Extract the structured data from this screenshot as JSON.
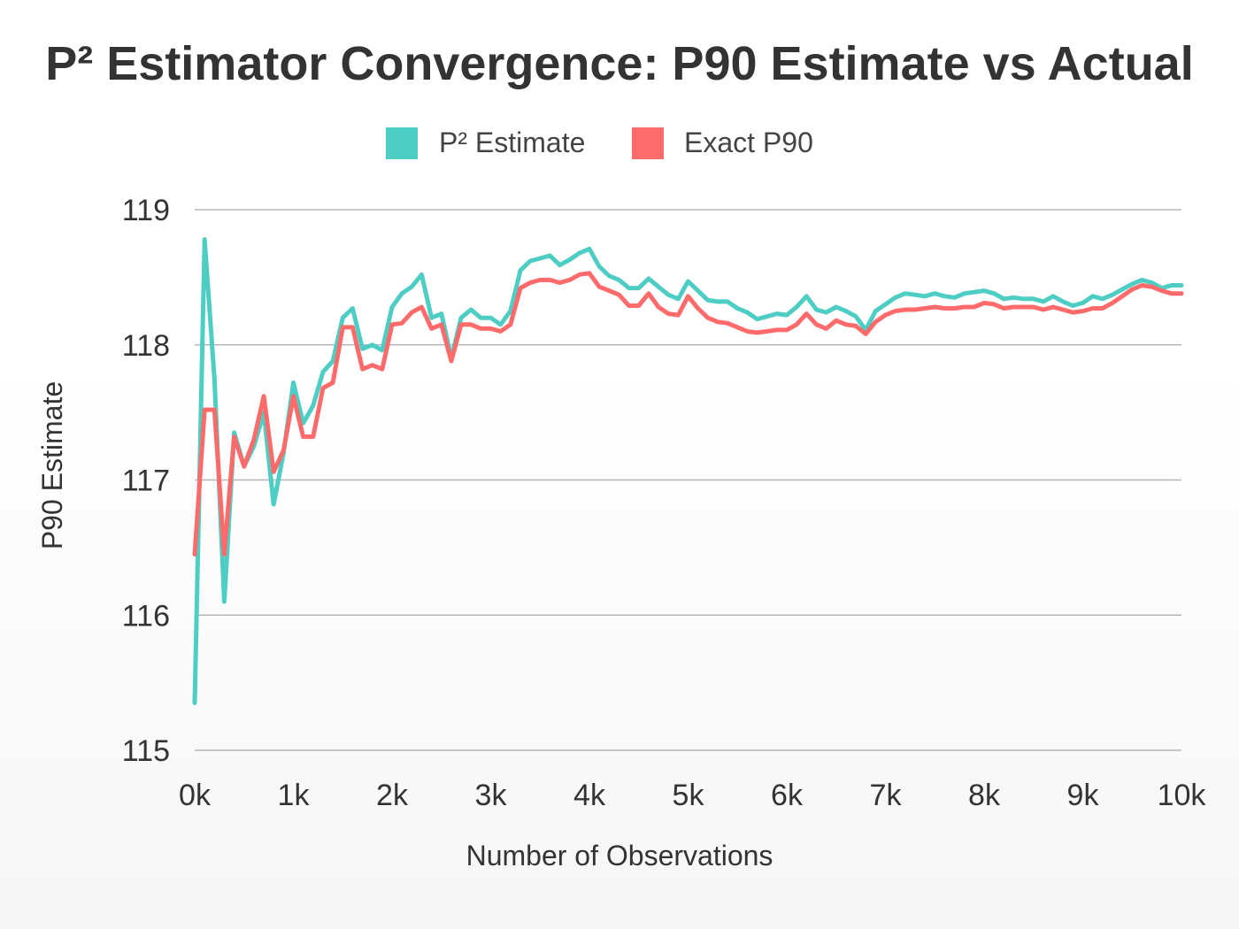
{
  "chart_data": {
    "type": "line",
    "title": "P² Estimator Convergence: P90 Estimate vs Actual",
    "xlabel": "Number of Observations",
    "ylabel": "P90 Estimate",
    "xlim": [
      0,
      10000
    ],
    "ylim": [
      115,
      119
    ],
    "x_ticks": [
      0,
      1000,
      2000,
      3000,
      4000,
      5000,
      6000,
      7000,
      8000,
      9000,
      10000
    ],
    "x_tick_labels": [
      "0k",
      "1k",
      "2k",
      "3k",
      "4k",
      "5k",
      "6k",
      "7k",
      "8k",
      "9k",
      "10k"
    ],
    "y_ticks": [
      115,
      116,
      117,
      118,
      119
    ],
    "y_tick_labels": [
      "115",
      "116",
      "117",
      "118",
      "119"
    ],
    "grid": true,
    "legend_position": "top-center",
    "x": [
      0,
      100,
      200,
      300,
      400,
      500,
      600,
      700,
      800,
      900,
      1000,
      1100,
      1200,
      1300,
      1400,
      1500,
      1600,
      1700,
      1800,
      1900,
      2000,
      2100,
      2200,
      2300,
      2400,
      2500,
      2600,
      2700,
      2800,
      2900,
      3000,
      3100,
      3200,
      3300,
      3400,
      3500,
      3600,
      3700,
      3800,
      3900,
      4000,
      4100,
      4200,
      4300,
      4400,
      4500,
      4600,
      4700,
      4800,
      4900,
      5000,
      5100,
      5200,
      5300,
      5400,
      5500,
      5600,
      5700,
      5800,
      5900,
      6000,
      6100,
      6200,
      6300,
      6400,
      6500,
      6600,
      6700,
      6800,
      6900,
      7000,
      7100,
      7200,
      7300,
      7400,
      7500,
      7600,
      7700,
      7800,
      7900,
      8000,
      8100,
      8200,
      8300,
      8400,
      8500,
      8600,
      8700,
      8800,
      8900,
      9000,
      9100,
      9200,
      9300,
      9400,
      9500,
      9600,
      9700,
      9800,
      9900,
      10000
    ],
    "series": [
      {
        "name": "P² Estimate",
        "color": "#4ecdc4",
        "values": [
          115.35,
          118.78,
          117.75,
          116.1,
          117.35,
          117.1,
          117.25,
          117.5,
          116.82,
          117.2,
          117.72,
          117.42,
          117.55,
          117.8,
          117.88,
          118.2,
          118.27,
          117.97,
          118.0,
          117.96,
          118.28,
          118.38,
          118.43,
          118.52,
          118.2,
          118.23,
          117.9,
          118.2,
          118.26,
          118.2,
          118.2,
          118.15,
          118.25,
          118.55,
          118.62,
          118.64,
          118.66,
          118.59,
          118.63,
          118.68,
          118.71,
          118.58,
          118.51,
          118.48,
          118.42,
          118.42,
          118.49,
          118.43,
          118.37,
          118.34,
          118.47,
          118.4,
          118.33,
          118.32,
          118.32,
          118.27,
          118.24,
          118.19,
          118.21,
          118.23,
          118.22,
          118.28,
          118.36,
          118.26,
          118.24,
          118.28,
          118.25,
          118.21,
          118.11,
          118.25,
          118.3,
          118.35,
          118.38,
          118.37,
          118.36,
          118.38,
          118.36,
          118.35,
          118.38,
          118.39,
          118.4,
          118.38,
          118.34,
          118.35,
          118.34,
          118.34,
          118.32,
          118.36,
          118.32,
          118.29,
          118.31,
          118.36,
          118.34,
          118.37,
          118.41,
          118.45,
          118.48,
          118.46,
          118.42,
          118.44,
          118.44
        ]
      },
      {
        "name": "Exact P90",
        "color": "#ff6b6b",
        "values": [
          116.45,
          117.52,
          117.52,
          116.45,
          117.32,
          117.1,
          117.3,
          117.62,
          117.06,
          117.22,
          117.62,
          117.32,
          117.32,
          117.68,
          117.72,
          118.13,
          118.13,
          117.82,
          117.85,
          117.82,
          118.15,
          118.16,
          118.24,
          118.28,
          118.12,
          118.15,
          117.88,
          118.15,
          118.15,
          118.12,
          118.12,
          118.1,
          118.15,
          118.42,
          118.46,
          118.48,
          118.48,
          118.46,
          118.48,
          118.52,
          118.53,
          118.43,
          118.4,
          118.37,
          118.29,
          118.29,
          118.38,
          118.28,
          118.23,
          118.22,
          118.36,
          118.27,
          118.2,
          118.17,
          118.16,
          118.13,
          118.1,
          118.09,
          118.1,
          118.11,
          118.11,
          118.15,
          118.23,
          118.15,
          118.12,
          118.18,
          118.15,
          118.14,
          118.08,
          118.17,
          118.22,
          118.25,
          118.26,
          118.26,
          118.27,
          118.28,
          118.27,
          118.27,
          118.28,
          118.28,
          118.31,
          118.3,
          118.27,
          118.28,
          118.28,
          118.28,
          118.26,
          118.28,
          118.26,
          118.24,
          118.25,
          118.27,
          118.27,
          118.31,
          118.36,
          118.41,
          118.44,
          118.43,
          118.4,
          118.38,
          118.38
        ]
      }
    ]
  }
}
